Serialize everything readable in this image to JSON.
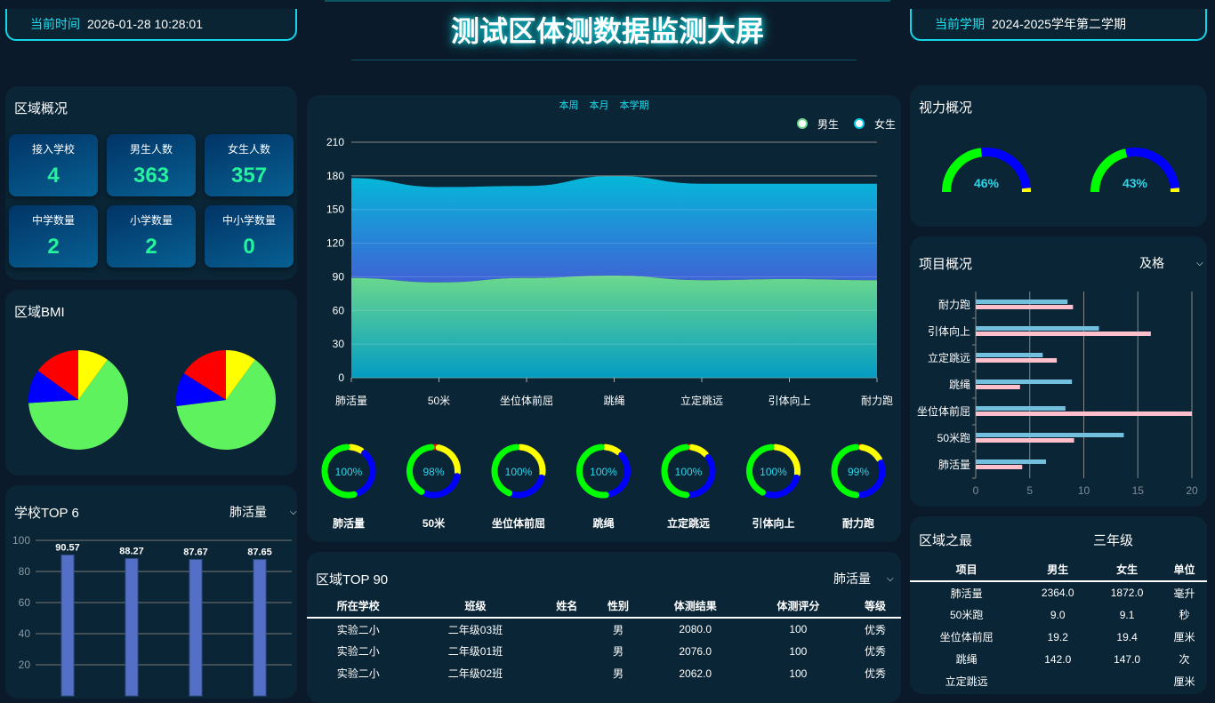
{
  "header": {
    "time_label": "当前时间",
    "time_value": "2026-01-28 10:28:01",
    "title": "测试区体测数据监测大屏",
    "term_label": "当前学期",
    "term_value": "2024-2025学年第二学期"
  },
  "overview": {
    "title": "区域概况",
    "stats": [
      {
        "label": "接入学校",
        "value": "4"
      },
      {
        "label": "男生人数",
        "value": "363"
      },
      {
        "label": "女生人数",
        "value": "357"
      },
      {
        "label": "中学数量",
        "value": "2"
      },
      {
        "label": "小学数量",
        "value": "2"
      },
      {
        "label": "中小学数量",
        "value": "0"
      }
    ]
  },
  "bmi": {
    "title": "区域BMI",
    "pies": [
      [
        {
          "color": "#ffff00",
          "value": 10
        },
        {
          "color": "#5ff25f",
          "value": 64
        },
        {
          "color": "#0000ff",
          "value": 11
        },
        {
          "color": "#ff0000",
          "value": 15
        }
      ],
      [
        {
          "color": "#ffff00",
          "value": 10
        },
        {
          "color": "#5ff25f",
          "value": 63
        },
        {
          "color": "#0000ff",
          "value": 11
        },
        {
          "color": "#ff0000",
          "value": 16
        }
      ]
    ]
  },
  "school_top": {
    "title": "学校TOP 6",
    "select": "肺活量",
    "chart_data": {
      "type": "bar",
      "values": [
        90.57,
        88.27,
        87.67,
        87.65
      ],
      "ylim": [
        0,
        100
      ],
      "yticks": [
        20,
        40,
        60,
        80,
        100
      ],
      "color": "#5470c6"
    }
  },
  "main_chart": {
    "tabs": [
      "本周",
      "本月",
      "本学期"
    ],
    "chart_data": {
      "type": "area",
      "stacked": true,
      "categories": [
        "肺活量",
        "50米",
        "坐位体前屈",
        "跳绳",
        "立定跳远",
        "引体向上",
        "耐力跑"
      ],
      "series": [
        {
          "name": "男生",
          "values": [
            89,
            85,
            89,
            91,
            87,
            88,
            87
          ]
        },
        {
          "name": "女生",
          "values": [
            89,
            85,
            82,
            89,
            86,
            85,
            86
          ]
        }
      ],
      "ylim": [
        0,
        210
      ],
      "yticks": [
        0,
        30,
        60,
        90,
        120,
        150,
        180,
        210
      ],
      "legend": "top-right"
    }
  },
  "donuts": {
    "items": [
      {
        "label": "肺活量",
        "percent": "100%",
        "segments": [
          {
            "color": "#ffff00",
            "value": 10
          },
          {
            "color": "#0000ff",
            "value": 35
          },
          {
            "color": "#00ff00",
            "value": 55
          }
        ]
      },
      {
        "label": "50米",
        "percent": "98%",
        "segments": [
          {
            "color": "#ff0000",
            "value": 2
          },
          {
            "color": "#ffff00",
            "value": 25
          },
          {
            "color": "#0000ff",
            "value": 30
          },
          {
            "color": "#00ff00",
            "value": 43
          }
        ]
      },
      {
        "label": "坐位体前屈",
        "percent": "100%",
        "segments": [
          {
            "color": "#ffff00",
            "value": 28
          },
          {
            "color": "#0000ff",
            "value": 27
          },
          {
            "color": "#00ff00",
            "value": 45
          }
        ]
      },
      {
        "label": "跳绳",
        "percent": "100%",
        "segments": [
          {
            "color": "#ffff00",
            "value": 12
          },
          {
            "color": "#0000ff",
            "value": 35
          },
          {
            "color": "#00ff00",
            "value": 53
          }
        ]
      },
      {
        "label": "立定跳远",
        "percent": "100%",
        "segments": [
          {
            "color": "#ff0000",
            "value": 1
          },
          {
            "color": "#ffff00",
            "value": 13
          },
          {
            "color": "#0000ff",
            "value": 36
          },
          {
            "color": "#00ff00",
            "value": 50
          }
        ]
      },
      {
        "label": "引体向上",
        "percent": "100%",
        "segments": [
          {
            "color": "#ffff00",
            "value": 28
          },
          {
            "color": "#0000ff",
            "value": 28
          },
          {
            "color": "#00ff00",
            "value": 44
          }
        ]
      },
      {
        "label": "耐力跑",
        "percent": "99%",
        "segments": [
          {
            "color": "#ff0000",
            "value": 1
          },
          {
            "color": "#ffff00",
            "value": 17
          },
          {
            "color": "#0000ff",
            "value": 32
          },
          {
            "color": "#00ff00",
            "value": 50
          }
        ]
      }
    ]
  },
  "region_top": {
    "title": "区域TOP 90",
    "select": "肺活量",
    "columns": [
      "所在学校",
      "班级",
      "姓名",
      "性别",
      "体测结果",
      "体测评分",
      "等级"
    ],
    "rows": [
      [
        "实验二小",
        "二年级03班",
        "",
        "男",
        "2080.0",
        "100",
        "优秀"
      ],
      [
        "实验二小",
        "二年级01班",
        "",
        "男",
        "2076.0",
        "100",
        "优秀"
      ],
      [
        "实验二小",
        "二年级02班",
        "",
        "男",
        "2062.0",
        "100",
        "优秀"
      ]
    ]
  },
  "vision": {
    "title": "视力概况",
    "gauges": [
      {
        "percent": "46%",
        "segments": [
          {
            "color": "#00ff00",
            "value": 46
          },
          {
            "color": "#0000ff",
            "value": 51
          },
          {
            "color": "#ffff00",
            "value": 3
          }
        ]
      },
      {
        "percent": "43%",
        "segments": [
          {
            "color": "#00ff00",
            "value": 43
          },
          {
            "color": "#0000ff",
            "value": 54
          },
          {
            "color": "#ffff00",
            "value": 3
          }
        ]
      }
    ]
  },
  "projects": {
    "title": "项目概况",
    "select": "及格",
    "chart_data": {
      "type": "bar",
      "orientation": "horizontal",
      "categories": [
        "肺活量",
        "50米跑",
        "坐位体前屈",
        "跳绳",
        "立定跳远",
        "引体向上",
        "耐力跑"
      ],
      "series": [
        {
          "color": "#73c0de",
          "values": [
            6.5,
            13.7,
            8.3,
            8.9,
            6.2,
            11.4,
            8.5
          ]
        },
        {
          "color": "#ffc0cb",
          "values": [
            4.3,
            9.1,
            20,
            4.1,
            7.5,
            16.2,
            9.0
          ]
        }
      ],
      "xlim": [
        0,
        20
      ],
      "xticks": [
        0,
        5,
        10,
        15,
        20
      ]
    }
  },
  "best": {
    "title": "区域之最",
    "grade": "三年级",
    "columns": [
      "项目",
      "男生",
      "女生",
      "单位"
    ],
    "rows": [
      [
        "肺活量",
        "2364.0",
        "1872.0",
        "毫升"
      ],
      [
        "50米跑",
        "9.0",
        "9.1",
        "秒"
      ],
      [
        "坐位体前屈",
        "19.2",
        "19.4",
        "厘米"
      ],
      [
        "跳绳",
        "142.0",
        "147.0",
        "次"
      ],
      [
        "立定跳远",
        "",
        "",
        "厘米"
      ]
    ]
  }
}
